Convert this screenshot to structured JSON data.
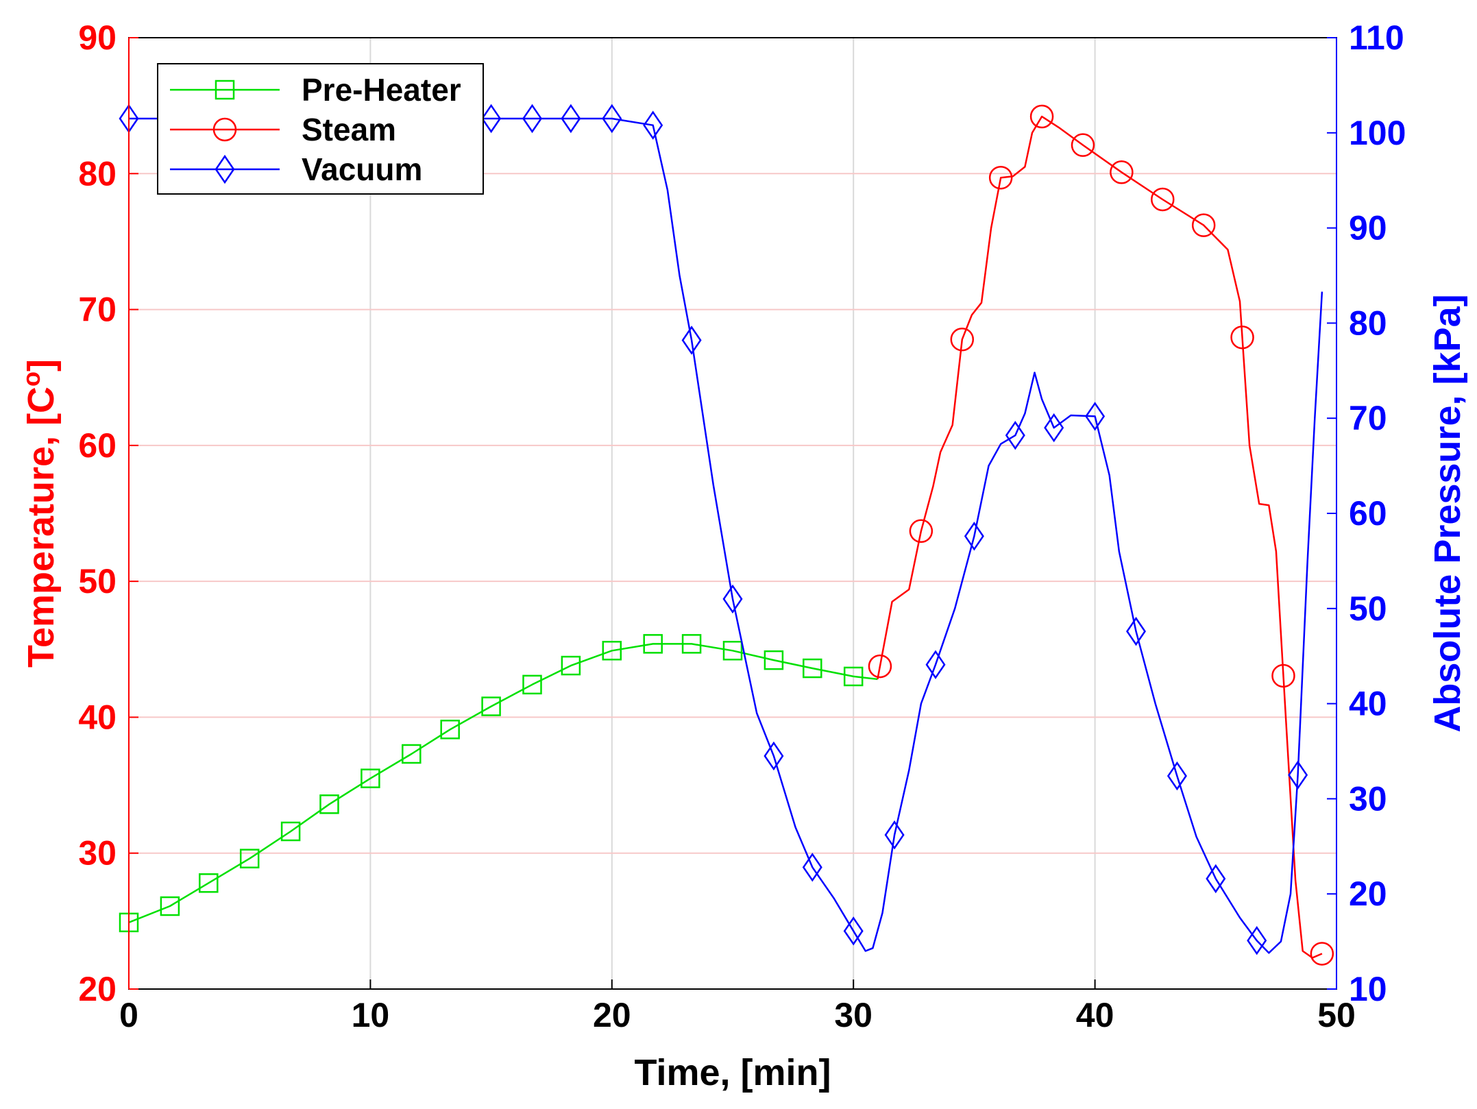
{
  "chart_data": {
    "type": "line",
    "xlabel": "Time, [min]",
    "ylabel_left_main": "Temperature, [C",
    "ylabel_left_sup": "o",
    "ylabel_left_end": "]",
    "ylabel_right": "Absolute Pressure, [kPa]",
    "xlim": [
      0,
      50
    ],
    "ylim_left": [
      20,
      90
    ],
    "ylim_right": [
      10,
      110
    ],
    "x_ticks": [
      "0",
      "10",
      "20",
      "30",
      "40",
      "50"
    ],
    "y_left_ticks": [
      "20",
      "30",
      "40",
      "50",
      "60",
      "70",
      "80",
      "90"
    ],
    "y_right_ticks": [
      "10",
      "20",
      "30",
      "40",
      "50",
      "60",
      "70",
      "80",
      "90",
      "100",
      "110"
    ],
    "grid": true,
    "legend_position": "top-left",
    "colors": {
      "left_axis": "#ff0000",
      "right_axis": "#0000ff",
      "grid_x": "#d9d9d9",
      "grid_y": "#f7c8c8"
    },
    "series": [
      {
        "name": "Pre-Heater",
        "axis": "left",
        "color": "#00e000",
        "marker": "square",
        "x": [
          0,
          1.7,
          3.3,
          5.0,
          6.7,
          8.3,
          10.0,
          11.7,
          13.3,
          15.0,
          16.7,
          18.3,
          20.0,
          21.7,
          23.3,
          25.0,
          26.7,
          28.3,
          30.0,
          31.0
        ],
        "values": [
          24.9,
          26.1,
          27.8,
          29.6,
          31.6,
          33.6,
          35.5,
          37.3,
          39.1,
          40.8,
          42.4,
          43.8,
          44.9,
          45.4,
          45.4,
          44.9,
          44.2,
          43.6,
          43.0,
          42.8
        ]
      },
      {
        "name": "Steam",
        "axis": "left",
        "color": "#ff0000",
        "marker": "circle",
        "x": [
          31.0,
          31.6,
          32.3,
          32.8,
          33.3,
          33.6,
          34.1,
          34.5,
          34.9,
          35.3,
          35.7,
          36.1,
          36.6,
          37.1,
          37.4,
          37.8,
          38.5,
          39.5,
          41.1,
          42.8,
          44.5,
          45.5,
          46.0,
          46.4,
          46.8,
          47.2,
          47.5,
          47.9,
          48.3,
          48.6,
          49.0,
          49.4
        ],
        "values": [
          42.8,
          48.5,
          49.4,
          53.7,
          57.0,
          59.5,
          61.5,
          67.8,
          69.6,
          70.5,
          76.0,
          79.7,
          79.8,
          80.5,
          83.0,
          84.2,
          83.4,
          82.1,
          80.1,
          78.1,
          76.2,
          74.4,
          70.6,
          60.0,
          55.7,
          55.6,
          52.2,
          40.0,
          28.0,
          22.8,
          22.3,
          22.6
        ]
      },
      {
        "name": "Vacuum",
        "axis": "right",
        "color": "#0000ff",
        "marker": "diamond",
        "x": [
          0,
          1.7,
          3.3,
          5.0,
          6.7,
          8.3,
          10.0,
          11.7,
          13.3,
          15.0,
          16.7,
          18.3,
          20.0,
          21.7,
          22.3,
          22.8,
          23.3,
          24.2,
          25.0,
          26.0,
          26.7,
          27.6,
          28.3,
          29.2,
          30.0,
          30.5,
          30.8,
          31.2,
          31.7,
          32.3,
          32.8,
          33.4,
          34.2,
          35.0,
          35.6,
          36.1,
          36.7,
          37.1,
          37.5,
          37.8,
          38.3,
          39.0,
          40.0,
          40.6,
          41.0,
          41.7,
          42.5,
          43.4,
          44.2,
          45.0,
          46.0,
          46.7,
          47.2,
          47.7,
          48.1,
          48.4,
          48.8,
          49.1,
          49.4
        ],
        "values": [
          101.5,
          101.5,
          101.5,
          101.5,
          101.5,
          101.5,
          101.5,
          101.5,
          101.5,
          101.5,
          101.5,
          101.5,
          101.5,
          100.8,
          94.0,
          85.0,
          78.2,
          63.0,
          51.0,
          39.0,
          34.5,
          27.0,
          22.8,
          19.5,
          16.1,
          14.0,
          14.3,
          18.0,
          26.2,
          33.0,
          40.0,
          44.1,
          50.0,
          57.6,
          65.0,
          67.3,
          68.2,
          70.5,
          74.8,
          72.0,
          69.0,
          70.3,
          70.2,
          64.0,
          56.0,
          47.6,
          40.0,
          32.4,
          26.0,
          21.6,
          17.5,
          15.1,
          13.8,
          15.0,
          20.0,
          32.5,
          55.0,
          70.0,
          83.3
        ]
      }
    ]
  }
}
